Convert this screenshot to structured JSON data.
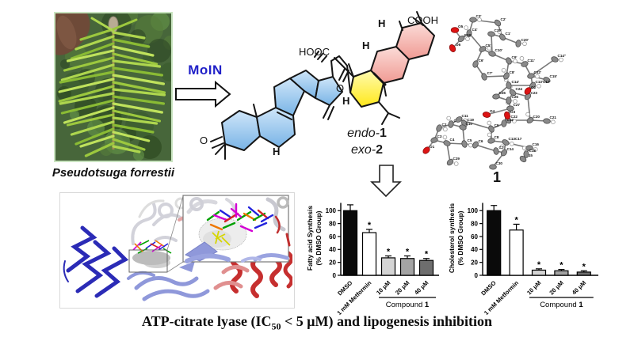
{
  "plant": {
    "label": "Pseudotsuga forrestii"
  },
  "reaction": {
    "arrow_label": "MoIN",
    "arrow_label_color": "#2121c8",
    "arrow_icon": "right-block-arrow"
  },
  "result_arrow_icon": "down-block-arrow",
  "molecule": {
    "hooc": "HOOC",
    "cooh": "COOH",
    "ketone_o": "O",
    "chain_o": "O",
    "h_labels": [
      "H",
      "H",
      "H",
      "H"
    ],
    "names": [
      {
        "italic": "endo-",
        "bold": "1"
      },
      {
        "italic": "exo-",
        "bold": "2"
      }
    ],
    "ring_colors": {
      "blue": "#7fb8e8",
      "yellow": "#ffee33",
      "pink": "#f4a9a4"
    }
  },
  "ortep": {
    "label": "1",
    "carbon_labels": [
      "C3'",
      "C2'",
      "C4'",
      "C18'",
      "C19'",
      "C1'",
      "C20'",
      "C5'",
      "C10'",
      "C9'",
      "C6'",
      "C11'",
      "C14''",
      "C7'",
      "C8'",
      "C12'",
      "C15'",
      "C14'",
      "C13'C17'",
      "C26",
      "C24",
      "C25",
      "C23",
      "C27",
      "C22",
      "C12",
      "C20",
      "C21",
      "C19",
      "C1",
      "C11",
      "C10",
      "C9",
      "C2",
      "C3",
      "C4",
      "C5",
      "C6",
      "C8",
      "C13C17",
      "C7",
      "C14",
      "C16",
      "C15",
      "C18",
      "C29",
      "C30"
    ],
    "oxygen_labels": [
      "O5",
      "O6",
      "O2",
      "O4",
      "O3",
      "O1"
    ]
  },
  "caption": {
    "p1": "ATP-citrate lyase (IC",
    "sub": "50",
    "p2": " < 5 μM) and lipogenesis inhibition"
  },
  "chart_data": [
    {
      "type": "bar",
      "ylabel_lines": [
        "Fatty acid Synthesis",
        "(% DMSO Group)"
      ],
      "categories": [
        "DMSO",
        "1 mM Metformin",
        "10 μM",
        "20 μM",
        "40 μM"
      ],
      "values": [
        100,
        66,
        27,
        26,
        23
      ],
      "errors": [
        9,
        5,
        3,
        4,
        3
      ],
      "significance": [
        "",
        "*",
        "*",
        "*",
        "*"
      ],
      "bar_colors": [
        "#0a0a0a",
        "#ffffff",
        "#d4d4d4",
        "#a3a3a3",
        "#6e6e6e"
      ],
      "yticks": [
        0,
        20,
        40,
        60,
        80,
        100
      ],
      "ylim": [
        0,
        115
      ],
      "grid": false,
      "group_label": {
        "prefix": "Compound ",
        "bold": "1"
      },
      "group_span": [
        2,
        4
      ]
    },
    {
      "type": "bar",
      "ylabel_lines": [
        "Cholesterol synthesis",
        "(% DMSO Group)"
      ],
      "categories": [
        "DMSO",
        "1 mM Metformin",
        "10 μM",
        "20 μM",
        "40 μM"
      ],
      "values": [
        100,
        70,
        8,
        7,
        5
      ],
      "errors": [
        8,
        9,
        2,
        2,
        2
      ],
      "significance": [
        "",
        "*",
        "*",
        "*",
        "*"
      ],
      "bar_colors": [
        "#0a0a0a",
        "#ffffff",
        "#d4d4d4",
        "#a3a3a3",
        "#6e6e6e"
      ],
      "yticks": [
        0,
        20,
        40,
        60,
        80,
        100
      ],
      "ylim": [
        0,
        115
      ],
      "grid": false,
      "group_label": {
        "prefix": "Compound ",
        "bold": "1"
      },
      "group_span": [
        2,
        4
      ]
    }
  ]
}
